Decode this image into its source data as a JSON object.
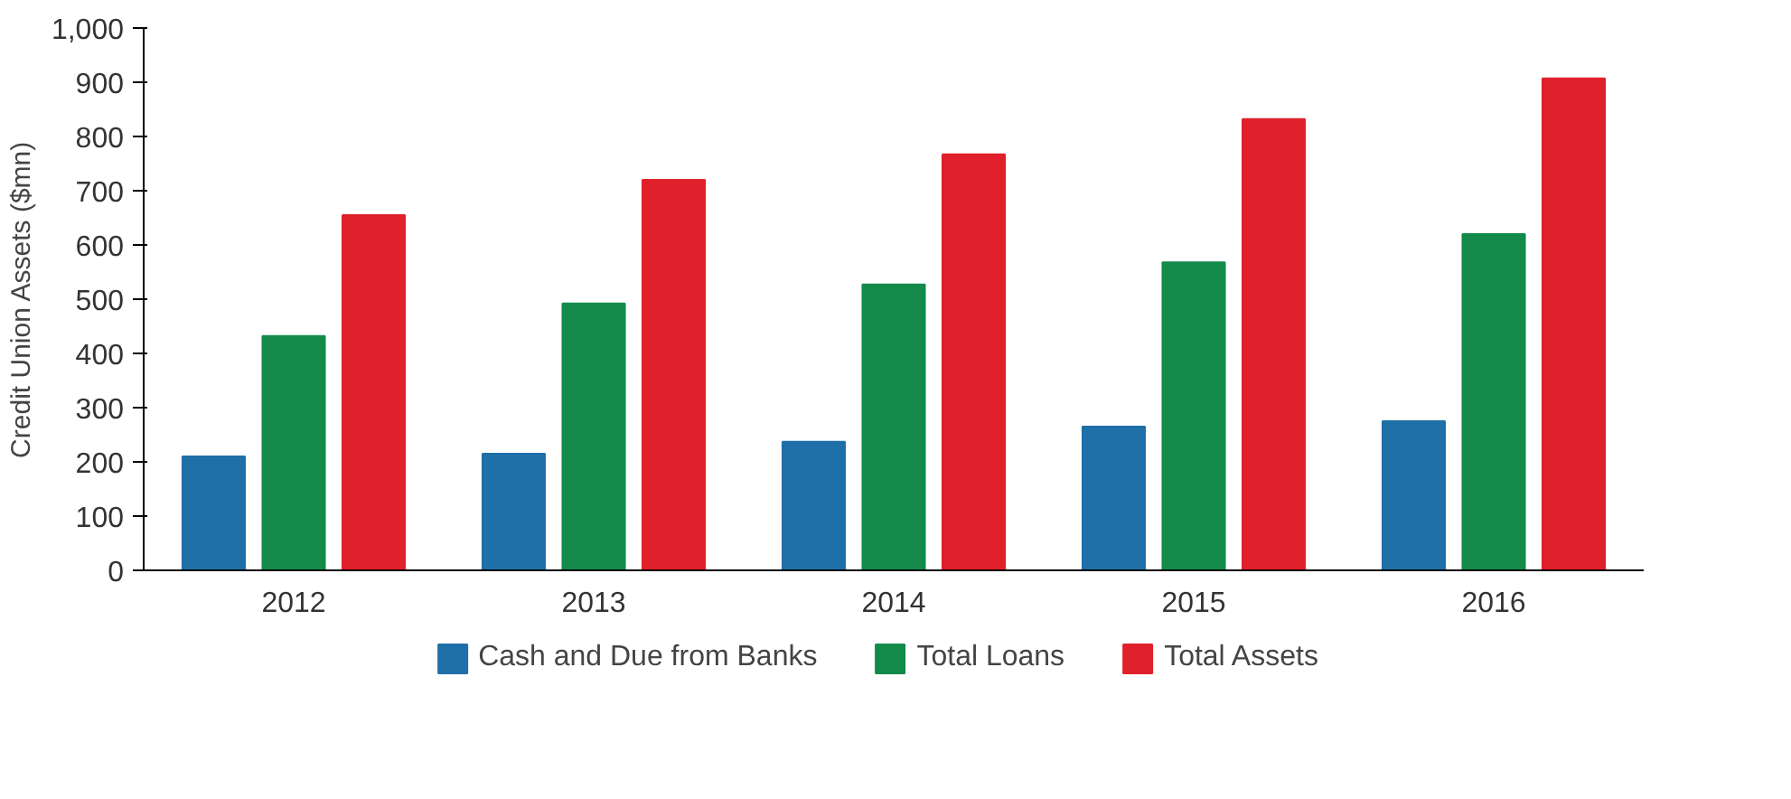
{
  "chart_data": {
    "type": "bar",
    "ylabel": "Credit Union Assets ($mn)",
    "categories": [
      "2012",
      "2013",
      "2014",
      "2015",
      "2016"
    ],
    "series": [
      {
        "name": "Cash and Due from Banks",
        "color": "#1f6fa8",
        "values": [
          210,
          215,
          237,
          265,
          275
        ]
      },
      {
        "name": "Total Loans",
        "color": "#138a4a",
        "values": [
          432,
          492,
          527,
          568,
          620
        ]
      },
      {
        "name": "Total Assets",
        "color": "#e0202a",
        "values": [
          655,
          720,
          767,
          832,
          907
        ]
      }
    ],
    "ylim": [
      0,
      1000
    ],
    "yticks": [
      0,
      100,
      200,
      300,
      400,
      500,
      600,
      700,
      800,
      900,
      {
        "value": 1000,
        "label": "1,000"
      }
    ],
    "grid": false,
    "legend": "bottom"
  }
}
